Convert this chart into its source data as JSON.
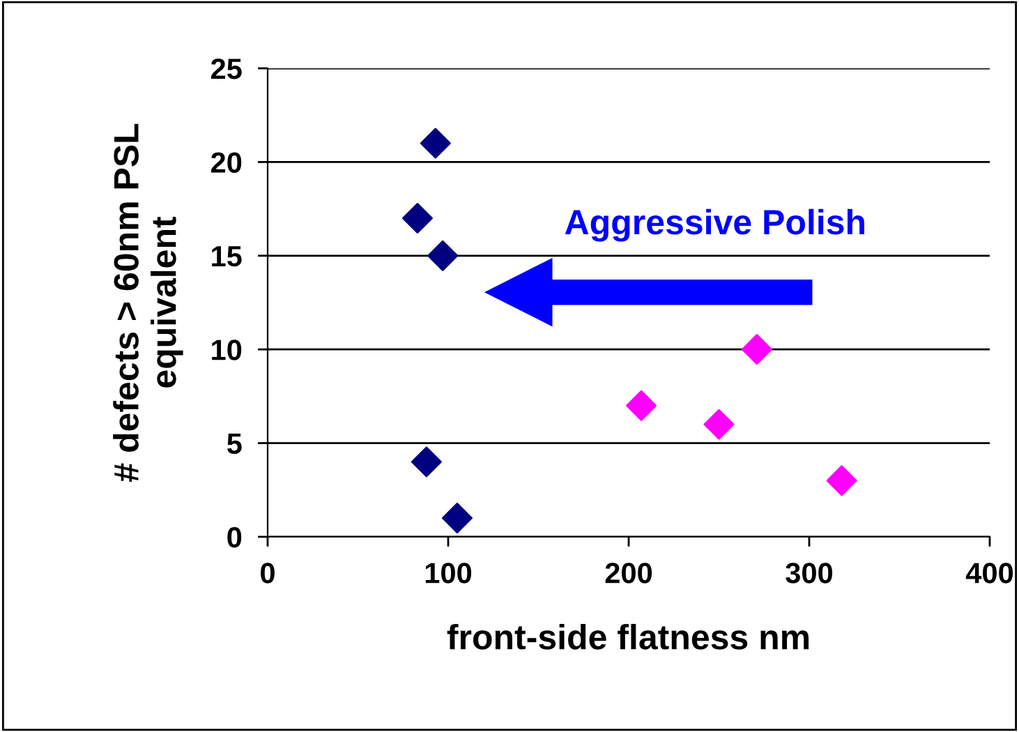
{
  "chart_data": {
    "type": "scatter",
    "xlabel": "front-side flatness nm",
    "ylabel": "# defects > 60nm PSL\nequivalent",
    "xlim": [
      0,
      400
    ],
    "xticks": [
      0,
      100,
      200,
      300,
      400
    ],
    "ylim": [
      0,
      25
    ],
    "yticks": [
      0,
      5,
      10,
      15,
      20,
      25
    ],
    "grid": "y",
    "marker": "diamond",
    "legend": false,
    "annotations": [
      "Aggressive Polish"
    ],
    "series": [
      {
        "color": "#000080",
        "x": [
          93,
          83,
          97,
          88,
          105
        ],
        "values": [
          21,
          17,
          15,
          4,
          1
        ]
      },
      {
        "color": "#ff00ff",
        "x": [
          207,
          250,
          271,
          318
        ],
        "values": [
          7,
          6,
          10,
          3
        ]
      }
    ]
  }
}
